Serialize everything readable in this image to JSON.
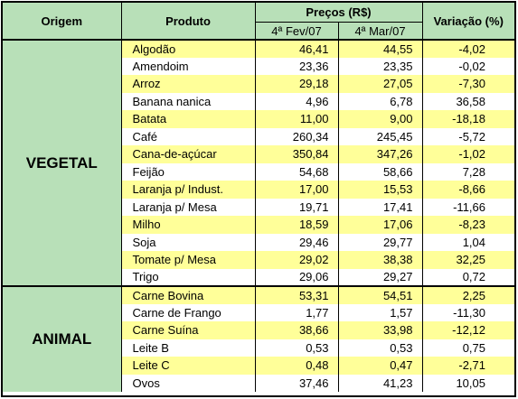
{
  "headers": {
    "origem": "Origem",
    "produto": "Produto",
    "precos": "Preços (R$)",
    "date1": "4ª Fev/07",
    "date2": "4ª Mar/07",
    "variacao": "Variação (%)"
  },
  "groups": [
    {
      "origem": "VEGETAL",
      "rows": [
        {
          "produto": "Algodão",
          "fev": "46,41",
          "mar": "44,55",
          "var": "-4,02"
        },
        {
          "produto": "Amendoim",
          "fev": "23,36",
          "mar": "23,35",
          "var": "-0,02"
        },
        {
          "produto": "Arroz",
          "fev": "29,18",
          "mar": "27,05",
          "var": "-7,30"
        },
        {
          "produto": "Banana nanica",
          "fev": "4,96",
          "mar": "6,78",
          "var": "36,58"
        },
        {
          "produto": "Batata",
          "fev": "11,00",
          "mar": "9,00",
          "var": "-18,18"
        },
        {
          "produto": "Café",
          "fev": "260,34",
          "mar": "245,45",
          "var": "-5,72"
        },
        {
          "produto": "Cana-de-açúcar",
          "fev": "350,84",
          "mar": "347,26",
          "var": "-1,02"
        },
        {
          "produto": "Feijão",
          "fev": "54,68",
          "mar": "58,66",
          "var": "7,28"
        },
        {
          "produto": "Laranja p/ Indust.",
          "fev": "17,00",
          "mar": "15,53",
          "var": "-8,66"
        },
        {
          "produto": "Laranja p/ Mesa",
          "fev": "19,71",
          "mar": "17,41",
          "var": "-11,66"
        },
        {
          "produto": "Milho",
          "fev": "18,59",
          "mar": "17,06",
          "var": "-8,23"
        },
        {
          "produto": "Soja",
          "fev": "29,46",
          "mar": "29,77",
          "var": "1,04"
        },
        {
          "produto": "Tomate p/ Mesa",
          "fev": "29,02",
          "mar": "38,38",
          "var": "32,25"
        },
        {
          "produto": "Trigo",
          "fev": "29,06",
          "mar": "29,27",
          "var": "0,72"
        }
      ]
    },
    {
      "origem": "ANIMAL",
      "rows": [
        {
          "produto": "Carne Bovina",
          "fev": "53,31",
          "mar": "54,51",
          "var": "2,25"
        },
        {
          "produto": "Carne de Frango",
          "fev": "1,77",
          "mar": "1,57",
          "var": "-11,30"
        },
        {
          "produto": "Carne Suína",
          "fev": "38,66",
          "mar": "33,98",
          "var": "-12,12"
        },
        {
          "produto": "Leite B",
          "fev": "0,53",
          "mar": "0,53",
          "var": "0,75"
        },
        {
          "produto": "Leite C",
          "fev": "0,48",
          "mar": "0,47",
          "var": "-2,71"
        },
        {
          "produto": "Ovos",
          "fev": "37,46",
          "mar": "41,23",
          "var": "10,05"
        }
      ]
    }
  ],
  "colors": {
    "header_green": "#b8e0b8",
    "row_yellow": "#ffff99",
    "row_white": "#ffffff"
  }
}
